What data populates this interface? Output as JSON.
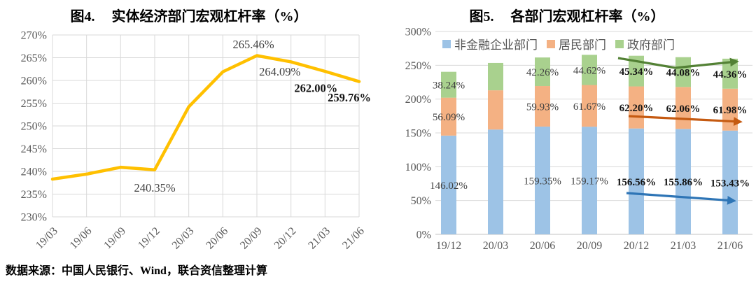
{
  "fig4": {
    "title_prefix": "图4.",
    "title": "实体经济部门宏观杠杆率（%）",
    "source_note": "数据来源：中国人民银行、Wind，联合资信整理计算"
  },
  "fig5": {
    "title_prefix": "图5.",
    "title": "各部门宏观杠杆率（%）"
  },
  "colors": {
    "gridline": "#D9D9D9",
    "axis_zero_line": "#C3C3C3",
    "tick_text": "#595959",
    "data_label_text": "#404040",
    "bold_label_text": "#141414",
    "line_gold": "#FFC000"
  },
  "chart_data": [
    {
      "id": "fig4",
      "type": "line",
      "title": "图4. 实体经济部门宏观杠杆率（%）",
      "categories": [
        "19/03",
        "19/06",
        "19/09",
        "19/12",
        "20/03",
        "20/06",
        "20/09",
        "20/12",
        "21/03",
        "21/06"
      ],
      "values": [
        238.3,
        239.4,
        240.9,
        240.35,
        254.2,
        261.9,
        265.46,
        264.09,
        262.0,
        259.76
      ],
      "point_labels": [
        null,
        null,
        null,
        "240.35%",
        null,
        null,
        "265.46%",
        "264.09%",
        "262.00%",
        "259.76%"
      ],
      "bold_labels": [
        "262.00%",
        "259.76%"
      ],
      "xlabel": "",
      "ylabel": "",
      "ylim": [
        230,
        270
      ],
      "ytick_step": 5,
      "ytick_suffix": "%",
      "line_color": "#FFC000",
      "grid": "both",
      "legend": "none"
    },
    {
      "id": "fig5",
      "type": "stacked-bar",
      "title": "图5. 各部门宏观杠杆率（%）",
      "categories": [
        "19/12",
        "20/03",
        "20/06",
        "20/09",
        "20/12",
        "21/03",
        "21/06"
      ],
      "series": [
        {
          "name": "非金融企业部门",
          "color": "#9DC3E6",
          "arrow_color": "#2E75B6",
          "values": [
            146.02,
            155.0,
            159.35,
            159.17,
            156.56,
            155.86,
            153.43
          ],
          "labels": [
            "146.02%",
            null,
            "159.35%",
            "159.17%",
            "156.56%",
            "155.86%",
            "153.43%"
          ]
        },
        {
          "name": "居民部门",
          "color": "#F4B183",
          "arrow_color": "#C55A11",
          "values": [
            56.09,
            58.0,
            59.93,
            61.67,
            62.2,
            62.06,
            61.98
          ],
          "labels": [
            "56.09%",
            null,
            "59.93%",
            "61.67%",
            "62.20%",
            "62.06%",
            "61.98%"
          ]
        },
        {
          "name": "政府部门",
          "color": "#A9D18E",
          "arrow_color": "#538135",
          "values": [
            38.24,
            40.5,
            42.26,
            44.62,
            45.34,
            44.08,
            44.36
          ],
          "labels": [
            "38.24%",
            null,
            "42.26%",
            "44.62%",
            "45.34%",
            "44.08%",
            "44.36%"
          ]
        }
      ],
      "bold_from_category": "20/12",
      "ylim": [
        0,
        300
      ],
      "ytick_step": 50,
      "ytick_suffix": "%",
      "grid": "horizontal",
      "legend_position": "top",
      "trend_arrows": [
        {
          "series": "政府部门",
          "color": "#538135",
          "span": [
            "20/12",
            "21/06"
          ]
        },
        {
          "series": "居民部门",
          "color": "#C55A11",
          "span": [
            "20/12",
            "21/06"
          ]
        },
        {
          "series": "非金融企业部门",
          "color": "#2E75B6",
          "span": [
            "20/12",
            "21/06"
          ]
        }
      ]
    }
  ]
}
